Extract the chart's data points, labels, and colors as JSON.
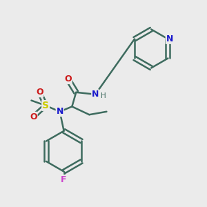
{
  "bg_color": "#ebebeb",
  "bond_color": "#3d6b5e",
  "bond_width": 1.8,
  "atom_colors": {
    "N": "#1a1acc",
    "O": "#cc1a1a",
    "S": "#cccc00",
    "F": "#cc44cc",
    "H": "#3d6b5e"
  }
}
